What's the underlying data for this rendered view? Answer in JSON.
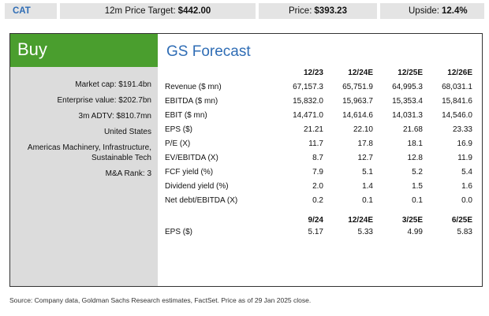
{
  "header": {
    "ticker": "CAT",
    "target_label": "12m Price Target:",
    "target_value": "$442.00",
    "price_label": "Price:",
    "price_value": "$393.23",
    "upside_label": "Upside:",
    "upside_value": "12.4%"
  },
  "rating": "Buy",
  "metrics": [
    "Market cap: $191.4bn",
    "Enterprise value: $202.7bn",
    "3m ADTV: $810.7mn",
    "United States",
    "Americas Machinery, Infrastructure, Sustainable Tech",
    "M&A Rank: 3"
  ],
  "forecast": {
    "title": "GS Forecast",
    "columns": [
      "12/23",
      "12/24E",
      "12/25E",
      "12/26E"
    ],
    "rows": [
      {
        "label": "Revenue ($ mn)",
        "values": [
          "67,157.3",
          "65,751.9",
          "64,995.3",
          "68,031.1"
        ]
      },
      {
        "label": "EBITDA ($ mn)",
        "values": [
          "15,832.0",
          "15,963.7",
          "15,353.4",
          "15,841.6"
        ]
      },
      {
        "label": "EBIT ($ mn)",
        "values": [
          "14,471.0",
          "14,614.6",
          "14,031.3",
          "14,546.0"
        ]
      },
      {
        "label": "EPS ($)",
        "values": [
          "21.21",
          "22.10",
          "21.68",
          "23.33"
        ]
      },
      {
        "label": "P/E (X)",
        "values": [
          "11.7",
          "17.8",
          "18.1",
          "16.9"
        ]
      },
      {
        "label": "EV/EBITDA (X)",
        "values": [
          "8.7",
          "12.7",
          "12.8",
          "11.9"
        ]
      },
      {
        "label": "FCF yield (%)",
        "values": [
          "7.9",
          "5.1",
          "5.2",
          "5.4"
        ]
      },
      {
        "label": "Dividend yield (%)",
        "values": [
          "2.0",
          "1.4",
          "1.5",
          "1.6"
        ]
      },
      {
        "label": "Net debt/EBITDA (X)",
        "values": [
          "0.2",
          "0.1",
          "0.1",
          "0.0"
        ]
      }
    ],
    "quarter_columns": [
      "9/24",
      "12/24E",
      "3/25E",
      "6/25E"
    ],
    "quarter_rows": [
      {
        "label": "EPS ($)",
        "values": [
          "5.17",
          "5.33",
          "4.99",
          "5.83"
        ]
      }
    ]
  },
  "source": "Source: Company data, Goldman Sachs Research estimates, FactSet. Price as of 29 Jan 2025 close."
}
